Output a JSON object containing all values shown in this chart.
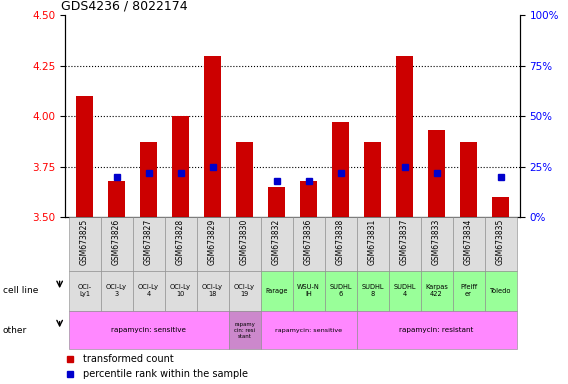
{
  "title": "GDS4236 / 8022174",
  "samples": [
    "GSM673825",
    "GSM673826",
    "GSM673827",
    "GSM673828",
    "GSM673829",
    "GSM673830",
    "GSM673832",
    "GSM673836",
    "GSM673838",
    "GSM673831",
    "GSM673837",
    "GSM673833",
    "GSM673834",
    "GSM673835"
  ],
  "red_values": [
    4.1,
    3.68,
    3.87,
    4.0,
    4.3,
    3.87,
    3.65,
    3.68,
    3.97,
    3.87,
    4.3,
    3.93,
    3.87,
    3.6
  ],
  "blue_values_pct": [
    null,
    20,
    22,
    22,
    25,
    null,
    18,
    18,
    22,
    null,
    25,
    22,
    null,
    20
  ],
  "ylim_left": [
    3.5,
    4.5
  ],
  "ylim_right": [
    0,
    100
  ],
  "yticks_left": [
    3.5,
    3.75,
    4.0,
    4.25,
    4.5
  ],
  "yticks_right": [
    0,
    25,
    50,
    75,
    100
  ],
  "cell_lines": [
    "OCI-\nLy1",
    "OCI-Ly\n3",
    "OCI-Ly\n4",
    "OCI-Ly\n10",
    "OCI-Ly\n18",
    "OCI-Ly\n19",
    "Farage",
    "WSU-N\nIH",
    "SUDHL\n6",
    "SUDHL\n8",
    "SUDHL\n4",
    "Karpas\n422",
    "Pfeiff\ner",
    "Toledo"
  ],
  "cell_line_colors": [
    "#dddddd",
    "#dddddd",
    "#dddddd",
    "#dddddd",
    "#dddddd",
    "#dddddd",
    "#99ff99",
    "#99ff99",
    "#99ff99",
    "#99ff99",
    "#99ff99",
    "#99ff99",
    "#99ff99",
    "#99ff99"
  ],
  "other_groups": [
    {
      "label": "rapamycin: sensitive",
      "start": 0,
      "end": 5,
      "color": "#ff88ff",
      "fontsize": 8
    },
    {
      "label": "rapamy\ncin: resi\nstant",
      "start": 5,
      "end": 6,
      "color": "#cc88cc",
      "fontsize": 6
    },
    {
      "label": "rapamycin: sensitive",
      "start": 6,
      "end": 9,
      "color": "#ff88ff",
      "fontsize": 7
    },
    {
      "label": "rapamycin: resistant",
      "start": 9,
      "end": 14,
      "color": "#ff88ff",
      "fontsize": 8
    }
  ],
  "bar_color": "#cc0000",
  "dot_color": "#0000cc",
  "grid_dotted_vals": [
    3.75,
    4.0,
    4.25
  ],
  "legend_items": [
    {
      "color": "#cc0000",
      "label": "transformed count"
    },
    {
      "color": "#0000cc",
      "label": "percentile rank within the sample"
    }
  ]
}
